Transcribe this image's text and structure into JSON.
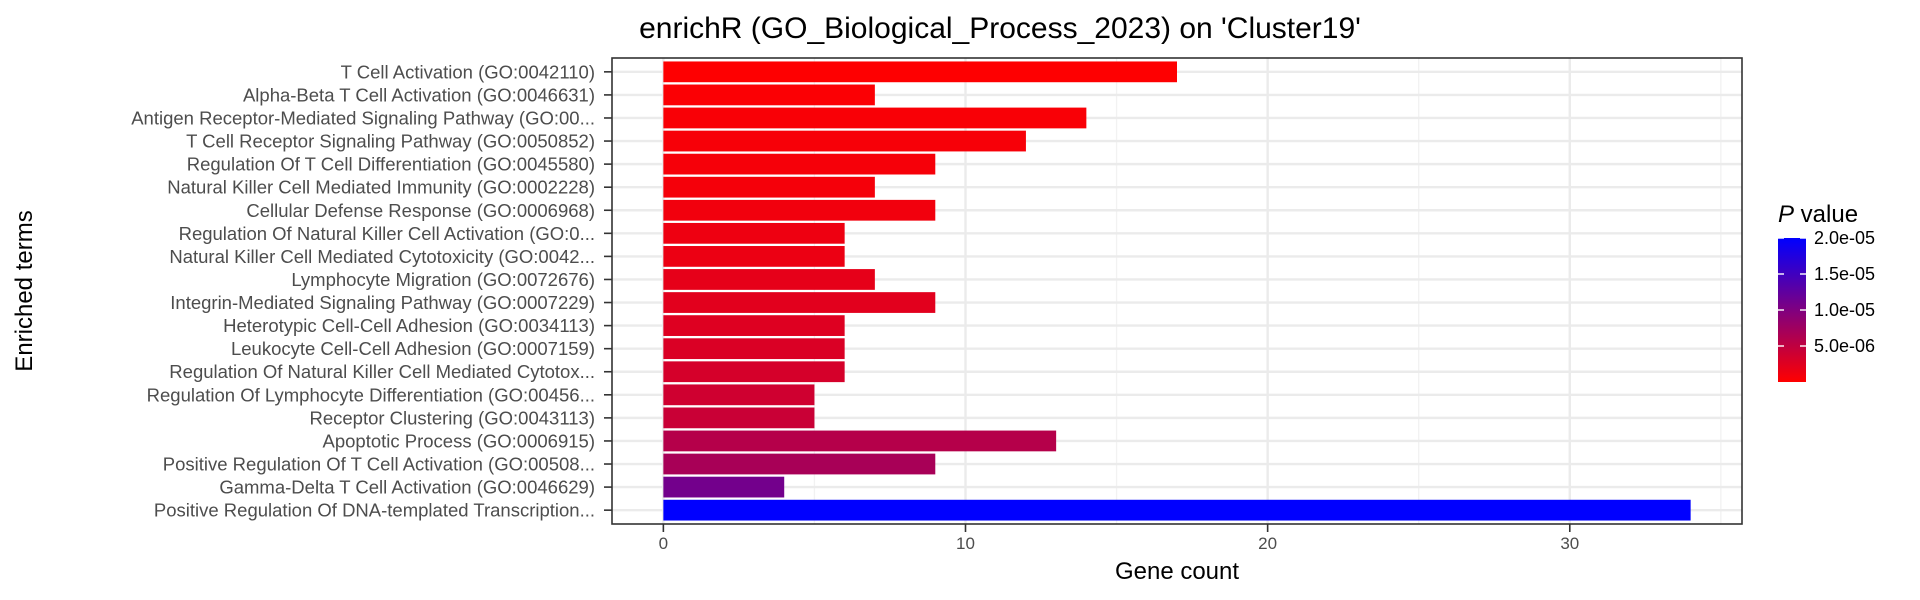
{
  "chart_data": {
    "type": "bar",
    "orientation": "horizontal",
    "title": "enrichR (GO_Biological_Process_2023) on 'Cluster19'",
    "xlabel": "Gene count",
    "ylabel": "Enriched terms",
    "xlim": [
      -1.7,
      35.7
    ],
    "xticks": [
      0,
      10,
      20,
      30
    ],
    "grid": true,
    "legend": {
      "title_italic": "P",
      "title_rest": " value",
      "placement": "right",
      "min": 0.0,
      "max": 2e-05,
      "ticks": [
        {
          "value": 2e-05,
          "label": "2.0e-05"
        },
        {
          "value": 1.5e-05,
          "label": "1.5e-05"
        },
        {
          "value": 1e-05,
          "label": "1.0e-05"
        },
        {
          "value": 5e-06,
          "label": "5.0e-06"
        }
      ],
      "color_low": "#ff0000",
      "color_high": "#0000ff"
    },
    "categories": [
      "T Cell Activation (GO:0042110)",
      "Alpha-Beta T Cell Activation (GO:0046631)",
      "Antigen Receptor-Mediated Signaling Pathway (GO:00...",
      "T Cell Receptor Signaling Pathway (GO:0050852)",
      "Regulation Of T Cell Differentiation (GO:0045580)",
      "Natural Killer Cell Mediated Immunity (GO:0002228)",
      "Cellular Defense Response (GO:0006968)",
      "Regulation Of Natural Killer Cell Activation (GO:0...",
      "Natural Killer Cell Mediated Cytotoxicity (GO:0042...",
      "Lymphocyte Migration (GO:0072676)",
      "Integrin-Mediated Signaling Pathway (GO:0007229)",
      "Heterotypic Cell-Cell Adhesion (GO:0034113)",
      "Leukocyte Cell-Cell Adhesion (GO:0007159)",
      "Regulation Of Natural Killer Cell Mediated Cytotox...",
      "Regulation Of Lymphocyte Differentiation (GO:00456...",
      "Receptor Clustering (GO:0043113)",
      "Apoptotic Process (GO:0006915)",
      "Positive Regulation Of T Cell Activation (GO:00508...",
      "Gamma-Delta T Cell Activation (GO:0046629)",
      "Positive Regulation Of DNA-templated Transcription..."
    ],
    "values": [
      17,
      7,
      14,
      12,
      9,
      7,
      9,
      6,
      6,
      7,
      9,
      6,
      6,
      6,
      5,
      5,
      13,
      9,
      4,
      34
    ],
    "p_values": [
      1e-07,
      3e-07,
      5e-07,
      6e-07,
      7e-07,
      8e-07,
      1e-06,
      1.3e-06,
      1.5e-06,
      2e-06,
      2.3e-06,
      2.6e-06,
      2.9e-06,
      3.3e-06,
      3.8e-06,
      4.2e-06,
      5.8e-06,
      6.8e-06,
      1.1e-05,
      2e-05
    ]
  }
}
